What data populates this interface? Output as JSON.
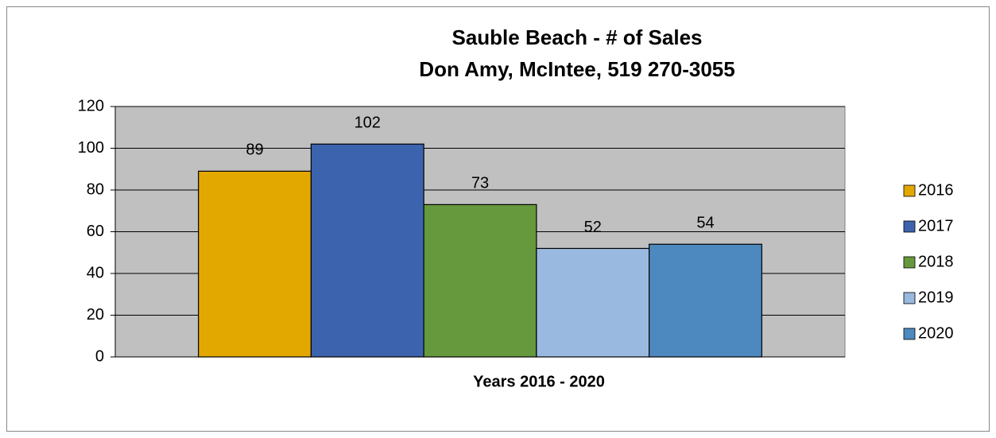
{
  "chart_data": {
    "type": "bar",
    "title": "Sauble Beach - # of Sales",
    "subtitle": "Don Amy, McIntee, 519 270-3055",
    "x_label": "Years 2016 - 2020",
    "categories": [
      null
    ],
    "series": [
      {
        "name": "2016",
        "color": "#e3a800",
        "values": [
          89
        ]
      },
      {
        "name": "2017",
        "color": "#3c63ae",
        "values": [
          102
        ]
      },
      {
        "name": "2018",
        "color": "#66993d",
        "values": [
          73
        ]
      },
      {
        "name": "2019",
        "color": "#9ab9e0",
        "values": [
          52
        ]
      },
      {
        "name": "2020",
        "color": "#4d89be",
        "values": [
          54
        ]
      }
    ],
    "ylim": [
      0,
      120
    ],
    "yticks": [
      0,
      20,
      40,
      60,
      80,
      100,
      120
    ],
    "grid": true,
    "legend": "right",
    "data_labels": true
  }
}
